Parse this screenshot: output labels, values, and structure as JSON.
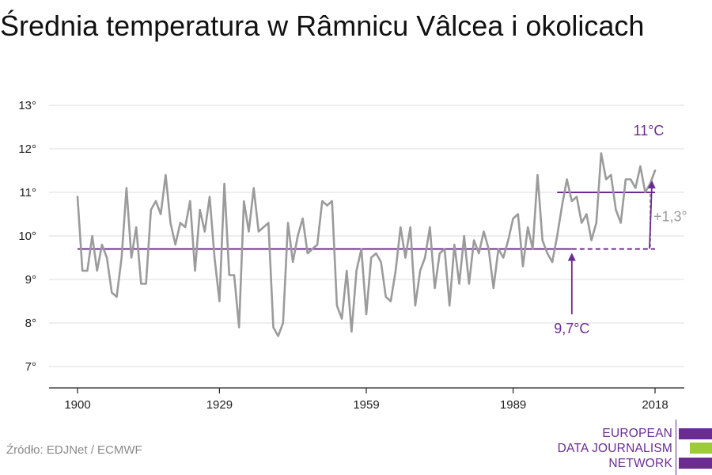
{
  "title": "Średnia temperatura w Râmnicu Vâlcea i okolicach",
  "source": "Źródło: EDJNet / ECMWF",
  "logo": {
    "lines": [
      "EUROPEAN",
      "DATA JOURNALISM",
      "NETWORK"
    ]
  },
  "colors": {
    "line": "#9b9b9b",
    "accent": "#6a2c91",
    "logo_green": "#9ccc3c",
    "diff": "#9b9b9b"
  },
  "chart_data": {
    "type": "line",
    "title": "Średnia temperatura w Râmnicu Vâlcea i okolicach",
    "xlabel": "",
    "ylabel": "",
    "xlim": [
      1900,
      2018
    ],
    "ylim": [
      6.5,
      13.0
    ],
    "x_ticks": [
      1900,
      1929,
      1959,
      1989,
      2018
    ],
    "y_ticks": [
      7,
      8,
      9,
      10,
      11,
      12,
      13
    ],
    "y_tick_suffix": "°",
    "grid": true,
    "series": [
      {
        "x_start": 1900,
        "values": [
          10.9,
          9.2,
          9.2,
          10.0,
          9.2,
          9.8,
          9.5,
          8.7,
          8.6,
          9.5,
          11.1,
          9.5,
          10.2,
          8.9,
          8.9,
          10.6,
          10.8,
          10.5,
          11.4,
          10.3,
          9.8,
          10.3,
          10.2,
          10.8,
          9.2,
          10.6,
          10.1,
          10.9,
          9.5,
          8.5,
          11.2,
          9.1,
          9.1,
          7.9,
          10.8,
          10.1,
          11.1,
          10.1,
          10.2,
          10.3,
          7.9,
          7.7,
          8.0,
          10.3,
          9.4,
          10.0,
          10.4,
          9.6,
          9.7,
          9.8,
          10.8,
          10.7,
          10.8,
          8.4,
          8.1,
          9.2,
          7.8,
          9.2,
          9.7,
          8.2,
          9.5,
          9.6,
          9.4,
          8.6,
          8.5,
          9.2,
          10.2,
          9.5,
          10.2,
          8.4,
          9.2,
          9.5,
          10.2,
          8.8,
          9.6,
          9.7,
          8.4,
          9.8,
          8.9,
          10.0,
          8.9,
          9.9,
          9.6,
          10.1,
          9.7,
          8.8,
          9.7,
          9.5,
          9.9,
          10.4,
          10.5,
          9.3,
          10.2,
          9.7,
          11.4,
          9.9,
          9.6,
          9.4,
          10.0,
          10.7,
          11.3,
          10.8,
          10.9,
          10.3,
          10.5,
          9.9,
          10.3,
          11.9,
          11.3,
          11.4,
          10.6,
          10.3,
          11.3,
          11.3,
          11.1,
          11.6,
          11.0,
          11.2,
          11.5
        ]
      }
    ],
    "baseline": {
      "value": 9.7,
      "from": 1900,
      "to": 2018,
      "dashed_from": 2001,
      "label": "9,7°C"
    },
    "recent_mean": {
      "value": 11.0,
      "from": 1998,
      "to": 2018,
      "label": "11°C"
    },
    "difference_label": "+1,3°"
  }
}
